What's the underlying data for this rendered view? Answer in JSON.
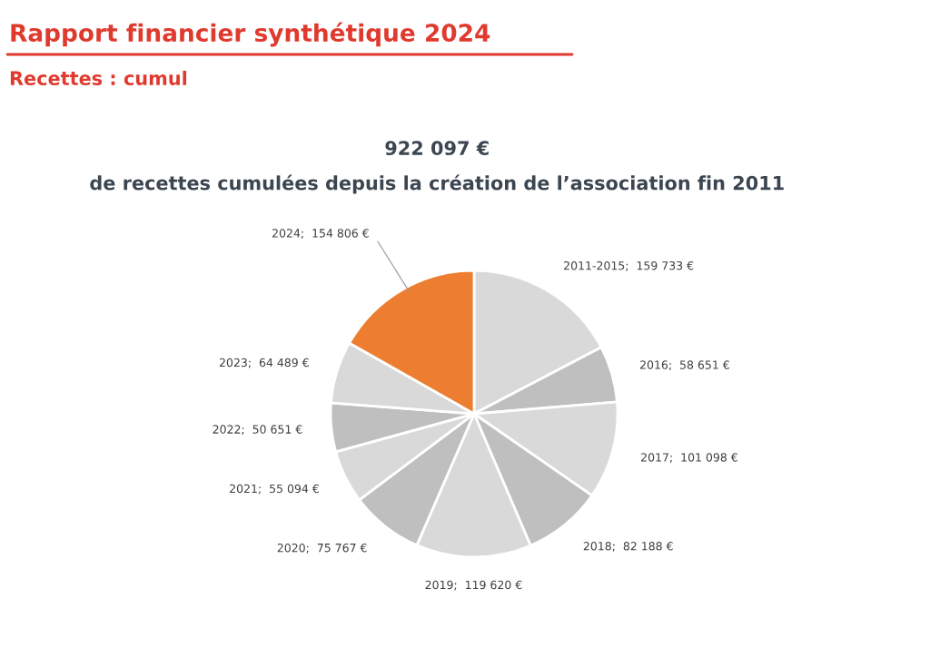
{
  "chart_data": {
    "type": "pie",
    "title": "Rapport financier synthétique 2024",
    "subtitle": "Recettes : cumul",
    "annotations": [
      "922 097 €",
      "de recettes cumulées depuis la création de l’association fin 2011"
    ],
    "categories": [
      "2011-2015",
      "2016",
      "2017",
      "2018",
      "2019",
      "2020",
      "2021",
      "2022",
      "2023",
      "2024"
    ],
    "values": [
      159733,
      58651,
      101098,
      82188,
      119620,
      75767,
      55094,
      50651,
      64489,
      154806
    ],
    "value_labels": [
      "159 733 €",
      "58 651 €",
      "101 098 €",
      "82 188 €",
      "119 620 €",
      "75 767 €",
      "55 094 €",
      "50 651 €",
      "64 489 €",
      "154 806 €"
    ],
    "colors": [
      "#d9d9d9",
      "#bfbfbf",
      "#d9d9d9",
      "#bfbfbf",
      "#d9d9d9",
      "#bfbfbf",
      "#d9d9d9",
      "#bfbfbf",
      "#d9d9d9",
      "#ed7d31"
    ]
  }
}
